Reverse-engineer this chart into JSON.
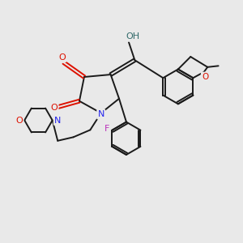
{
  "bg_color": "#e9e9e9",
  "bond_color": "#1a1a1a",
  "bond_width": 1.4,
  "atom_colors": {
    "O": "#dd1100",
    "N": "#2222ee",
    "F": "#bb33bb",
    "OH": "#336b6b",
    "C": "#1a1a1a"
  },
  "font_size": 7.5
}
